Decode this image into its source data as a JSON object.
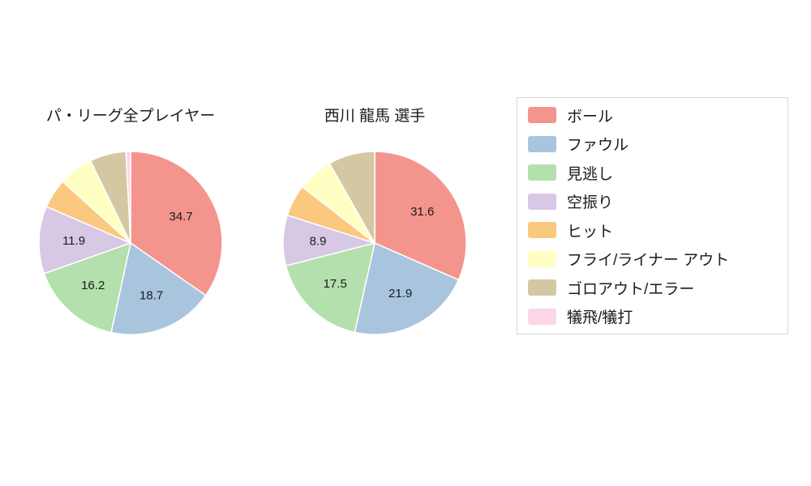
{
  "legend": {
    "items": [
      {
        "label": "ボール",
        "color": "#f4958d"
      },
      {
        "label": "ファウル",
        "color": "#a8c5dd"
      },
      {
        "label": "見逃し",
        "color": "#b3e0ac"
      },
      {
        "label": "空振り",
        "color": "#d7c8e5"
      },
      {
        "label": "ヒット",
        "color": "#fbc880"
      },
      {
        "label": "フライ/ライナー アウト",
        "color": "#ffffc4"
      },
      {
        "label": "ゴロアウト/エラー",
        "color": "#d3c8a2"
      },
      {
        "label": "犠飛/犠打",
        "color": "#fbd5e8"
      }
    ]
  },
  "chart_data": [
    {
      "type": "pie",
      "title": "パ・リーグ全プレイヤー",
      "direction": "clockwise",
      "start_angle_deg": 0,
      "categories": [
        "ボール",
        "ファウル",
        "見逃し",
        "空振り",
        "ヒット",
        "フライ/ライナー アウト",
        "ゴロアウト/エラー",
        "犠飛/犠打"
      ],
      "values": [
        34.7,
        18.7,
        16.2,
        11.9,
        5.2,
        6.1,
        6.4,
        0.8
      ],
      "value_labels": [
        "34.7",
        "18.7",
        "16.2",
        "11.9",
        "",
        "",
        "",
        ""
      ]
    },
    {
      "type": "pie",
      "title": "西川 龍馬 選手",
      "direction": "clockwise",
      "start_angle_deg": 0,
      "categories": [
        "ボール",
        "ファウル",
        "見逃し",
        "空振り",
        "ヒット",
        "フライ/ライナー アウト",
        "ゴロアウト/エラー",
        "犠飛/犠打"
      ],
      "values": [
        31.6,
        21.9,
        17.5,
        8.9,
        5.6,
        6.3,
        8.2,
        0.0
      ],
      "value_labels": [
        "31.6",
        "21.9",
        "17.5",
        "8.9",
        "",
        "",
        "",
        ""
      ]
    }
  ]
}
